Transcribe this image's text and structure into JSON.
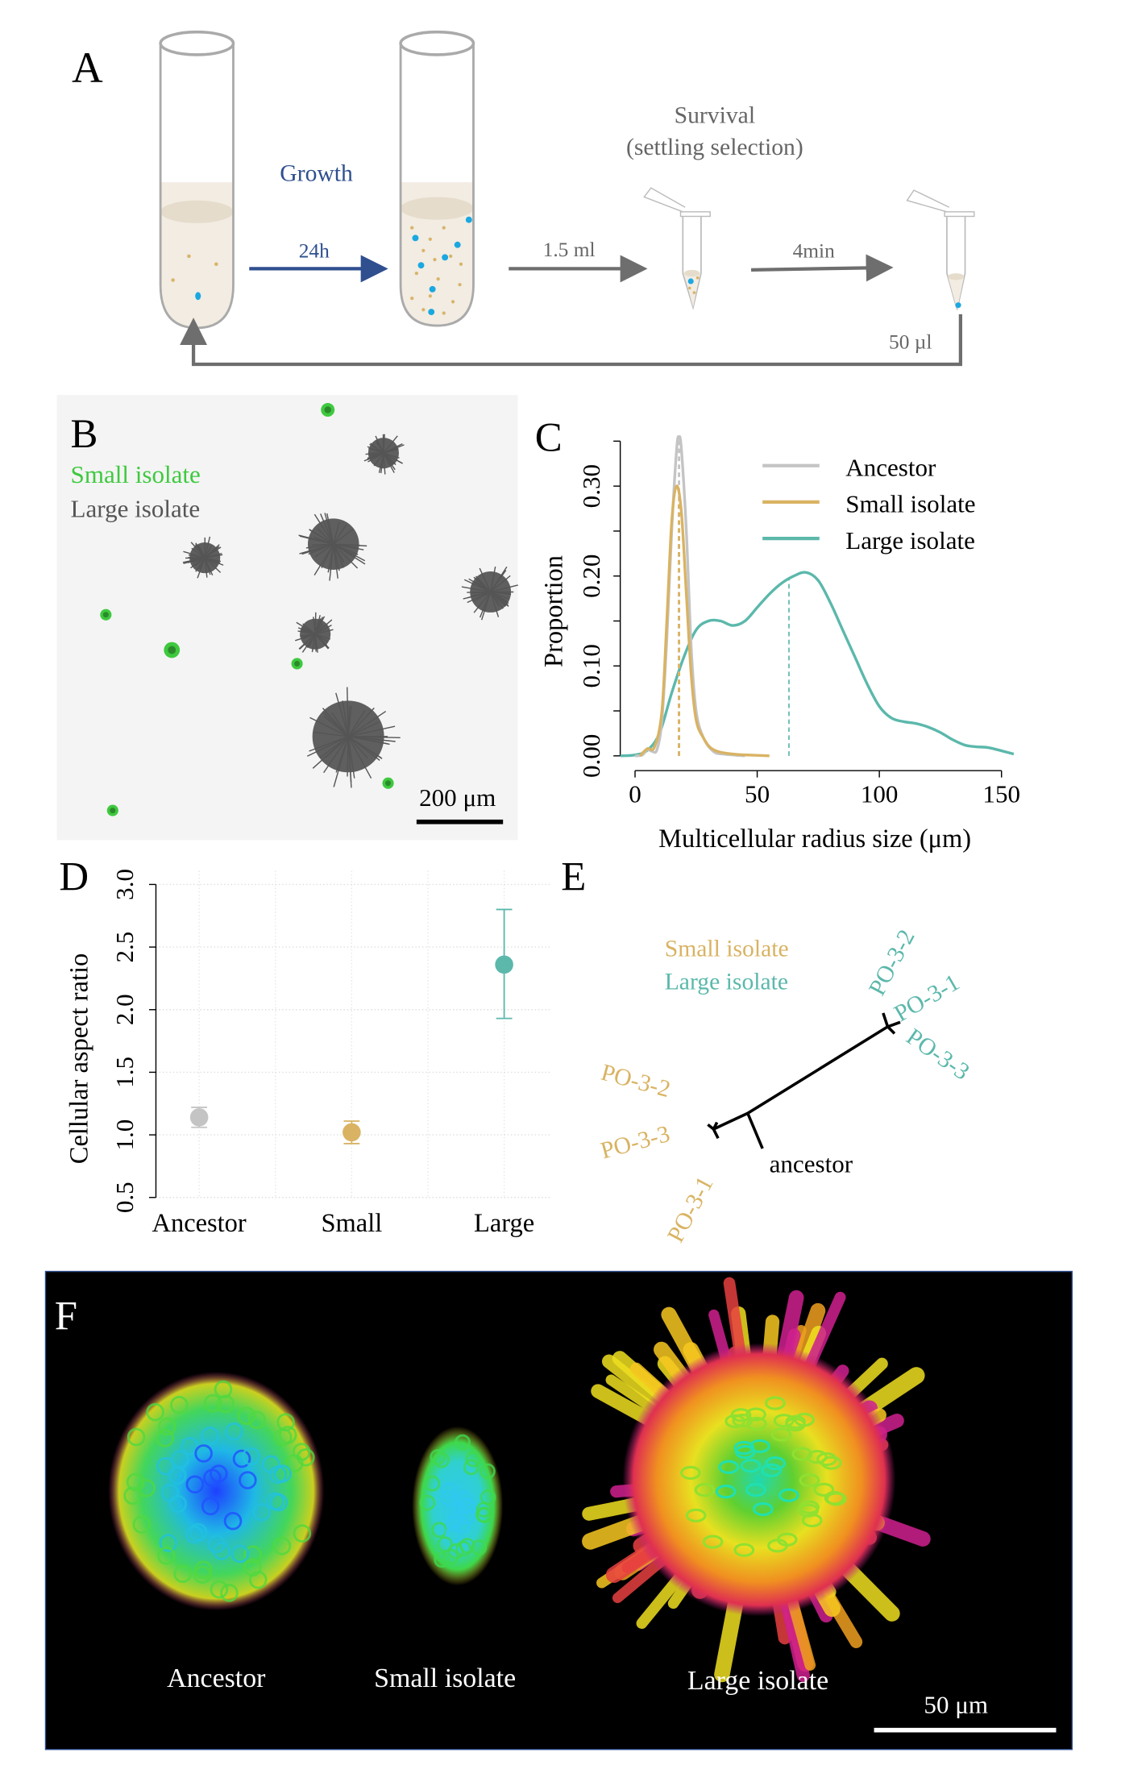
{
  "panelA": {
    "label": "A",
    "growth": "Growth",
    "time": "24h",
    "volume_transfer": "1.5 ml",
    "survival_title": "Survival",
    "survival_subtitle": "(settling selection)",
    "settle_time": "4min",
    "volume_keep": "50 µl",
    "colors": {
      "blue_arrow": "#2f4f8f",
      "grey_arrow": "#6e6e6e",
      "medium": "#f2ece2",
      "cell_small": "#d8b46a",
      "cell_large": "#1ba8e0"
    }
  },
  "panelB": {
    "label": "B",
    "legend_small": "Small isolate",
    "legend_large": "Large isolate",
    "scalebar": "200 μm",
    "colors": {
      "small": "#3ec93e",
      "large": "#555555"
    }
  },
  "panelC": {
    "label": "C"
  },
  "panelD": {
    "label": "D"
  },
  "panelE": {
    "label": "E",
    "legend_small": "Small isolate",
    "legend_large": "Large isolate",
    "root": "ancestor",
    "large_tips": [
      "PO-3-2",
      "PO-3-1",
      "PO-3-3"
    ],
    "small_tips": [
      "PO-3-2",
      "PO-3-3",
      "PO-3-1"
    ]
  },
  "panelF": {
    "label": "F",
    "captions": [
      "Ancestor",
      "Small isolate",
      "Large isolate"
    ],
    "scalebar": "50 μm"
  },
  "chart_data": [
    {
      "type": "line",
      "panel": "C",
      "xlabel": "Multicellular radius size (μm)",
      "ylabel": "Proportion",
      "xlim": [
        0,
        150
      ],
      "ylim": [
        0,
        0.35
      ],
      "xticks": [
        "0",
        "50",
        "100",
        "150"
      ],
      "yticks": [
        "0.00",
        "0.10",
        "0.20",
        "0.30"
      ],
      "legend_position": "top-right",
      "series": [
        {
          "name": "Ancestor",
          "color": "#c4c4c4",
          "median": 18,
          "x": [
            0,
            3,
            5,
            7,
            9,
            11,
            13,
            15,
            17,
            18,
            19,
            21,
            23,
            25,
            28,
            32,
            36,
            45
          ],
          "y": [
            0,
            0.001,
            0.007,
            0.005,
            0.007,
            0.04,
            0.13,
            0.25,
            0.34,
            0.355,
            0.34,
            0.25,
            0.12,
            0.05,
            0.02,
            0.005,
            0.002,
            0
          ]
        },
        {
          "name": "Small isolate",
          "color": "#d9b363",
          "median": 18,
          "x": [
            2,
            5,
            8,
            11,
            13,
            15,
            17,
            19,
            21,
            23,
            25,
            28,
            32,
            40,
            55
          ],
          "y": [
            0,
            0.008,
            0.01,
            0.05,
            0.15,
            0.26,
            0.3,
            0.27,
            0.18,
            0.09,
            0.04,
            0.02,
            0.007,
            0.002,
            0
          ]
        },
        {
          "name": "Large isolate",
          "color": "#5bb8ab",
          "median": 63,
          "x": [
            -6,
            0,
            5,
            10,
            15,
            20,
            25,
            30,
            35,
            40,
            45,
            50,
            55,
            60,
            65,
            70,
            75,
            80,
            85,
            90,
            95,
            100,
            105,
            110,
            115,
            120,
            125,
            130,
            135,
            140,
            145,
            155
          ],
          "y": [
            0,
            0.001,
            0.006,
            0.025,
            0.07,
            0.11,
            0.14,
            0.15,
            0.15,
            0.145,
            0.15,
            0.165,
            0.18,
            0.192,
            0.2,
            0.204,
            0.195,
            0.17,
            0.14,
            0.11,
            0.08,
            0.055,
            0.042,
            0.038,
            0.036,
            0.032,
            0.026,
            0.018,
            0.012,
            0.01,
            0.009,
            0.002
          ]
        }
      ]
    },
    {
      "type": "scatter",
      "panel": "D",
      "ylabel": "Cellular aspect ratio",
      "ylim": [
        0.5,
        3.0
      ],
      "yticks": [
        "0.5",
        "1.0",
        "1.5",
        "2.0",
        "2.5",
        "3.0"
      ],
      "grid": true,
      "categories": [
        "Ancestor",
        "Small",
        "Large"
      ],
      "values": [
        1.14,
        1.02,
        2.36
      ],
      "error_low": [
        1.06,
        0.93,
        1.93
      ],
      "error_high": [
        1.22,
        1.11,
        2.8
      ],
      "colors": [
        "#c4c4c4",
        "#d9b363",
        "#5bb8ab"
      ]
    }
  ]
}
